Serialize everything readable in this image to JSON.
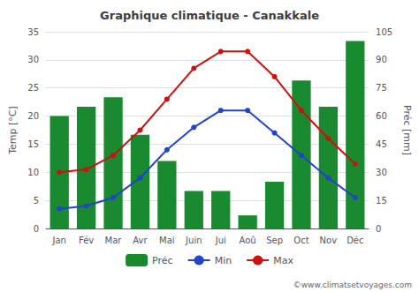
{
  "chart_data": {
    "type": "bar",
    "title": "Graphique climatique - Canakkale",
    "categories": [
      "Jan",
      "Fév",
      "Mar",
      "Avr",
      "Mai",
      "Juin",
      "Jui",
      "Aoû",
      "Sep",
      "Oct",
      "Nov",
      "Déc"
    ],
    "series": [
      {
        "name": "Préc",
        "type": "bar",
        "axis": "y2",
        "color": "#1a8a30",
        "values": [
          60,
          65,
          70,
          50,
          36,
          20,
          20,
          7,
          25,
          79,
          65,
          100
        ]
      },
      {
        "name": "Min",
        "type": "line",
        "color": "#2244cc",
        "marker": "circle",
        "values": [
          3.5,
          4.0,
          5.5,
          9.0,
          14.0,
          18.0,
          21.0,
          21.0,
          17.0,
          13.0,
          9.0,
          5.5
        ]
      },
      {
        "name": "Max",
        "type": "line",
        "color": "#cc1111",
        "marker": "circle",
        "values": [
          10.0,
          10.5,
          13.0,
          17.5,
          23.0,
          28.5,
          31.5,
          31.5,
          27.0,
          21.0,
          16.0,
          11.5
        ]
      }
    ],
    "ylabel": "Temp [°C]",
    "y2label": "Préc [mm]",
    "ylim": [
      0,
      35
    ],
    "yticks": [
      0,
      5,
      10,
      15,
      20,
      25,
      30,
      35
    ],
    "y2lim": [
      0,
      105
    ],
    "y2ticks": [
      0,
      15,
      30,
      45,
      60,
      75,
      90,
      105
    ],
    "grid": true,
    "legend": "bottom",
    "annotations": [
      "©www.climatsetvoyages.com"
    ]
  }
}
